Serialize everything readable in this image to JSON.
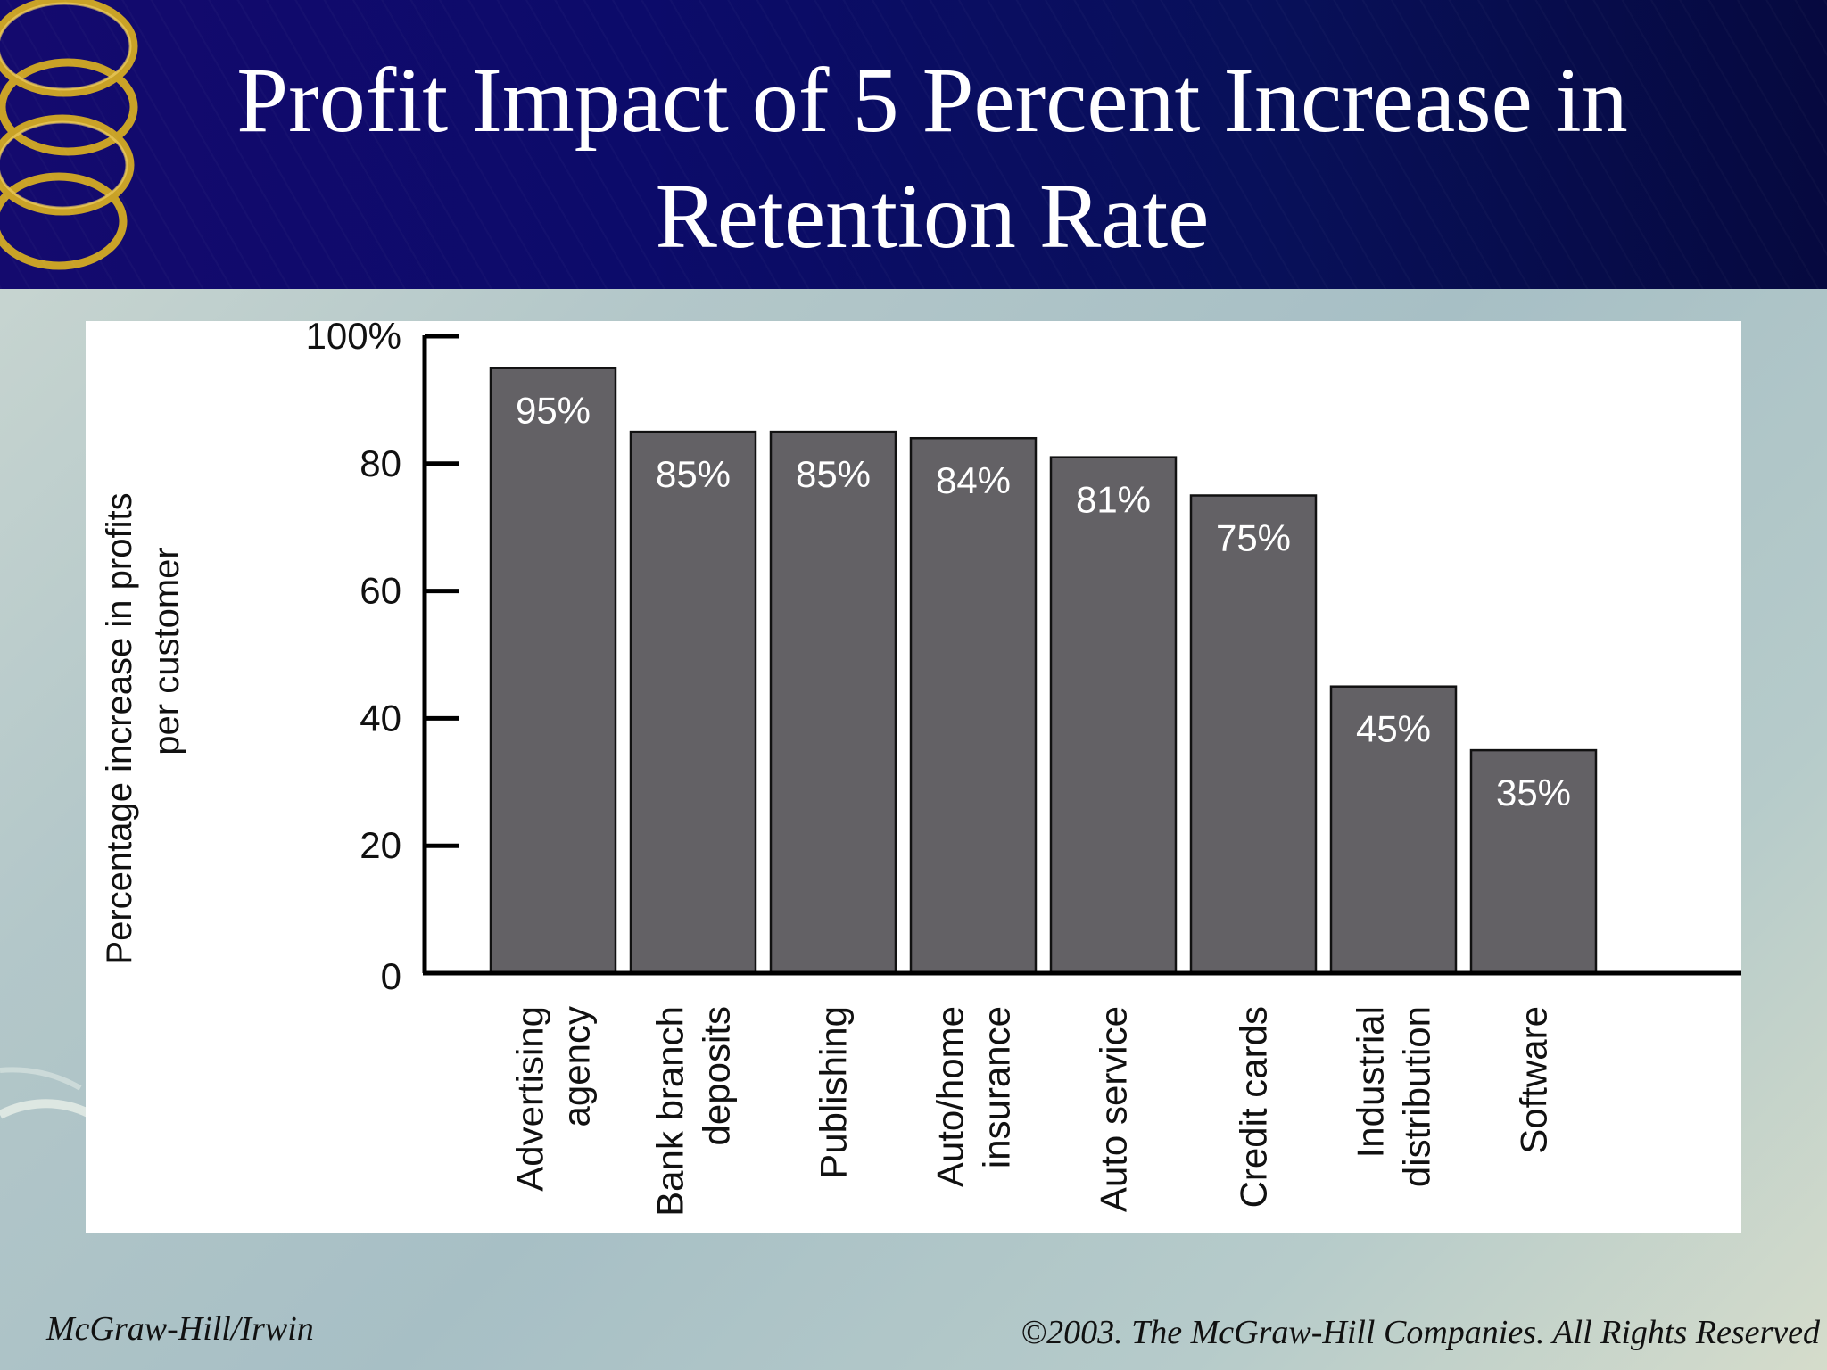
{
  "slide": {
    "title_line1": "Profit Impact of 5 Percent Increase in",
    "title_line2": "Retention Rate",
    "footer_left": "McGraw-Hill/Irwin",
    "footer_right": "©2003. The McGraw-Hill Companies. All Rights Reserved"
  },
  "colors": {
    "header": "#0c0b6a",
    "bar": "#636165",
    "bar_label": "#ffffff",
    "axis": "#000000",
    "logo_gold": "#c9a227"
  },
  "icons": [
    "gold-rings-logo-icon"
  ],
  "chart_data": {
    "type": "bar",
    "title": "",
    "ylabel_line1": "Percentage increase in profits",
    "ylabel_line2": "per customer",
    "xlabel": "",
    "ylim": [
      0,
      100
    ],
    "yticks": [
      {
        "value": 100,
        "label": "100%"
      },
      {
        "value": 80,
        "label": "80"
      },
      {
        "value": 60,
        "label": "60"
      },
      {
        "value": 40,
        "label": "40"
      },
      {
        "value": 20,
        "label": "20"
      },
      {
        "value": 0,
        "label": "0"
      }
    ],
    "categories": [
      [
        "Advertising",
        "agency"
      ],
      [
        "Bank branch",
        "deposits"
      ],
      [
        "Publishing"
      ],
      [
        "Auto/home",
        "insurance"
      ],
      [
        "Auto service"
      ],
      [
        "Credit cards"
      ],
      [
        "Industrial",
        "distribution"
      ],
      [
        "Software"
      ]
    ],
    "values": [
      95,
      85,
      85,
      84,
      81,
      75,
      45,
      35
    ],
    "data_labels": [
      "95%",
      "85%",
      "85%",
      "84%",
      "81%",
      "75%",
      "45%",
      "35%"
    ],
    "grid": false,
    "legend": "none"
  }
}
